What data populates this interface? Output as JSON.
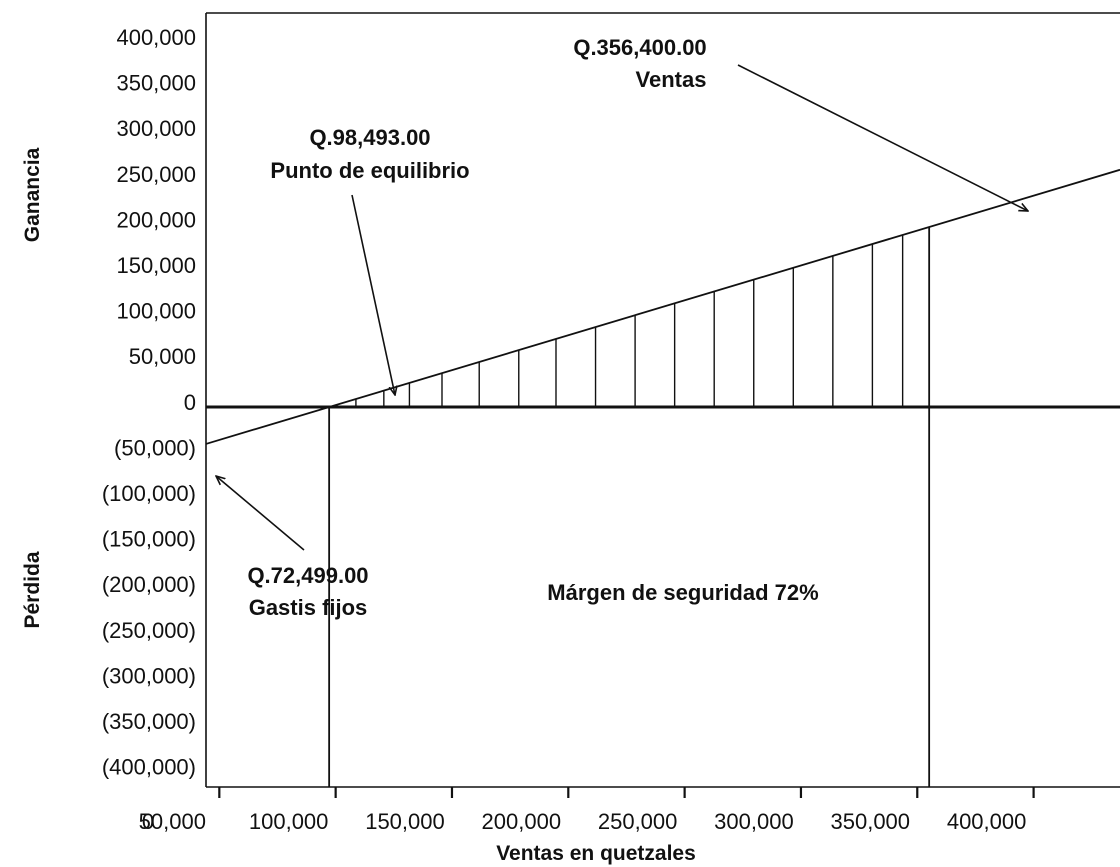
{
  "chart_data": {
    "type": "line",
    "xlabel": "Ventas en quetzales",
    "ylabel_top": "Ganancia",
    "ylabel_bottom": "Pérdida",
    "xlim": [
      0,
      420000
    ],
    "ylim": [
      -400000,
      400000
    ],
    "x_ticks": [
      0,
      50000,
      100000,
      150000,
      200000,
      250000,
      300000,
      350000,
      400000
    ],
    "x_tick_labels": [
      "0",
      "50,000",
      "100,000",
      "150,000",
      "200,000",
      "250,000",
      "300,000",
      "350,000",
      "400,000"
    ],
    "y_ticks": [
      400000,
      350000,
      300000,
      250000,
      200000,
      150000,
      100000,
      50000,
      0,
      -50000,
      -100000,
      -150000,
      -200000,
      -250000,
      -300000,
      -350000,
      -400000
    ],
    "y_tick_labels": [
      "400,000",
      "350,000",
      "300,000",
      "250,000",
      "200,000",
      "150,000",
      "100,000",
      "50,000",
      "0",
      "(50,000)",
      "(100,000)",
      "(150,000)",
      "(200,000)",
      "(250,000)",
      "(300,000)",
      "(350,000)",
      "(400,000)"
    ],
    "series": [
      {
        "x": [
          0,
          98493,
          356400,
          420000
        ],
        "y": [
          -72499,
          0,
          200000,
          250000
        ]
      }
    ],
    "hatch_x": [
      110000,
      122000,
      133000,
      147000,
      163000,
      180000,
      196000,
      213000,
      230000,
      247000,
      264000,
      281000,
      298000,
      315000,
      332000,
      345000
    ],
    "reference_lines_x": [
      98493,
      356400
    ],
    "grid": false,
    "annotations": {
      "ventas": {
        "line1": "Q.356,400.00",
        "line2": "Ventas"
      },
      "equilibrio": {
        "line1": "Q.98,493.00",
        "line2": "Punto de equilibrio"
      },
      "fijos": {
        "line1": "Q.72,499.00",
        "line2": "Gastis fijos"
      },
      "margen": "Márgen de seguridad 72%"
    }
  }
}
